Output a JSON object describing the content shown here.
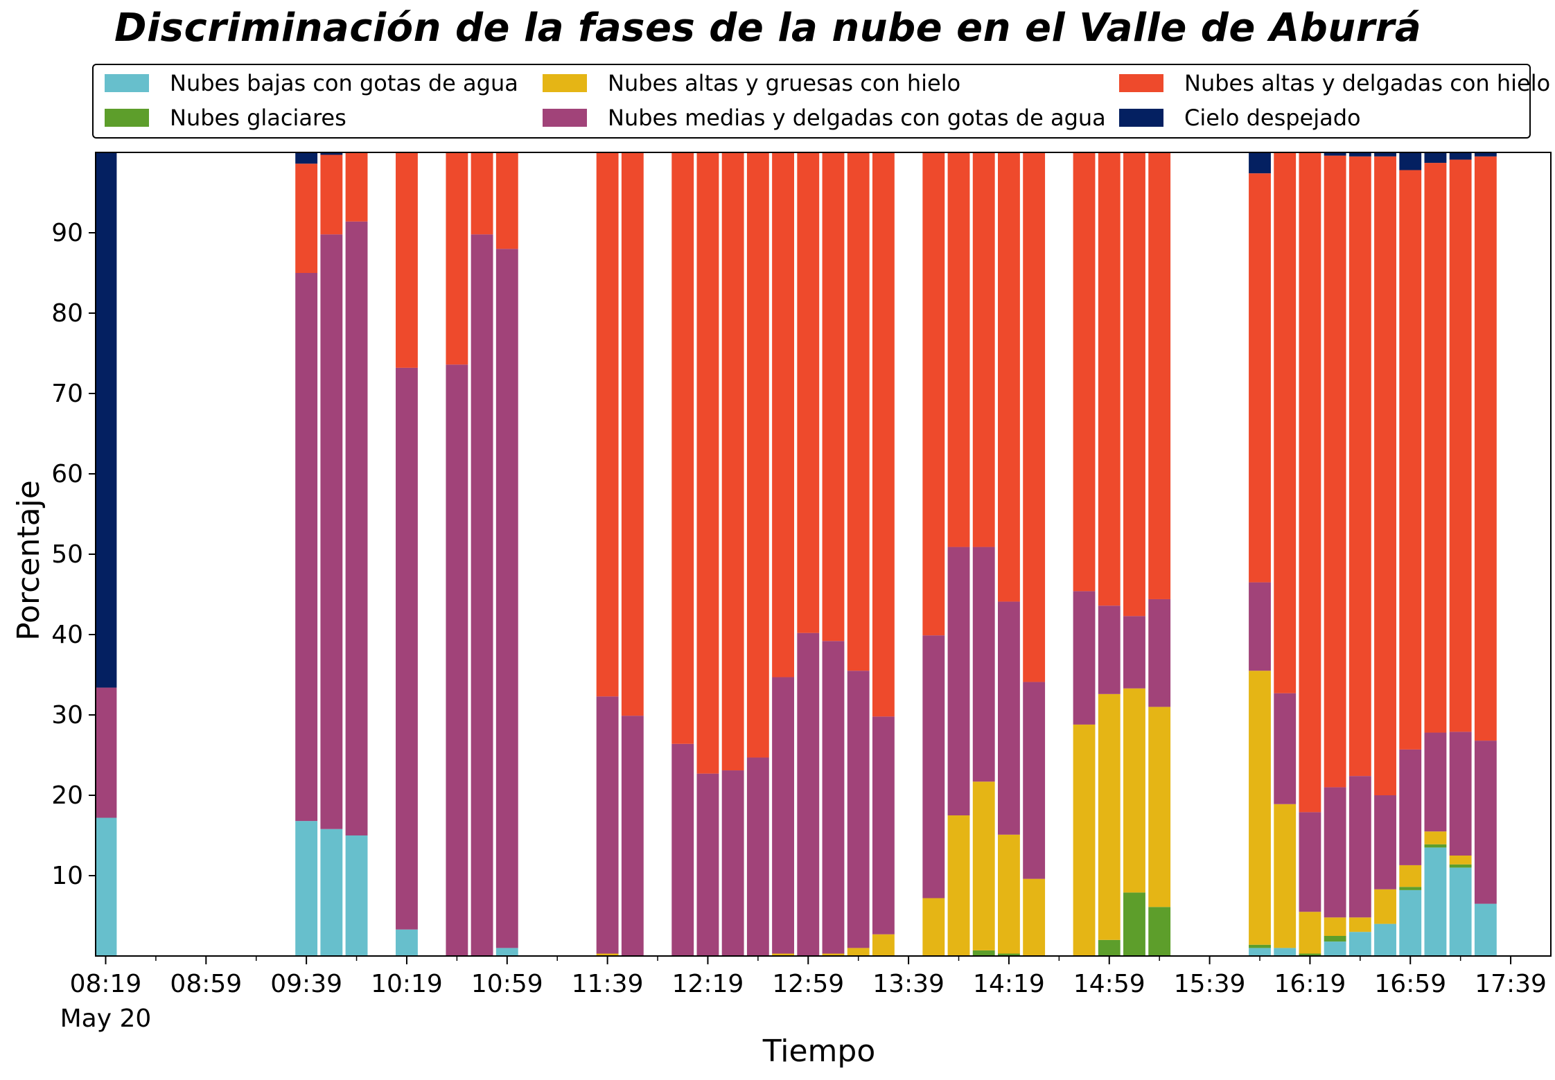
{
  "chart_data": {
    "type": "bar",
    "stacked": true,
    "title": "Discriminación de la fases de la nube en el Valle de Aburrá",
    "xlabel": "Tiempo",
    "ylabel": "Porcentaje",
    "ylim": [
      0,
      100
    ],
    "y_ticks": [
      10,
      20,
      30,
      40,
      50,
      60,
      70,
      80,
      90
    ],
    "x_range": [
      "08:15",
      "17:55"
    ],
    "x_tick_labels": [
      "08:19",
      "08:59",
      "09:39",
      "10:19",
      "10:59",
      "11:39",
      "12:19",
      "12:59",
      "13:39",
      "14:19",
      "14:59",
      "15:39",
      "16:19",
      "16:59",
      "17:39"
    ],
    "x_date_label": "May 20",
    "grid": false,
    "legend_position": "top",
    "series": [
      {
        "name": "Nubes bajas con gotas de agua",
        "color": "#67bfcc"
      },
      {
        "name": "Nubes glaciares",
        "color": "#5d9e2b"
      },
      {
        "name": "Nubes altas y gruesas con hielo",
        "color": "#e5b515"
      },
      {
        "name": "Nubes medias y delgadas con gotas de agua",
        "color": "#a14379"
      },
      {
        "name": "Nubes altas y delgadas con hielo",
        "color": "#ee4a2c"
      },
      {
        "name": "Cielo despejado",
        "color": "#042061"
      }
    ],
    "bars": [
      {
        "time": "08:19",
        "values": [
          17.2,
          0,
          0,
          16.2,
          0,
          66.6
        ]
      },
      {
        "time": "09:39",
        "values": [
          16.8,
          0,
          0,
          68.2,
          13.6,
          1.4
        ]
      },
      {
        "time": "09:49",
        "values": [
          15.8,
          0,
          0,
          74.0,
          9.9,
          0.3
        ]
      },
      {
        "time": "09:59",
        "values": [
          15.0,
          0,
          0,
          76.4,
          8.6,
          0
        ]
      },
      {
        "time": "10:19",
        "values": [
          3.3,
          0,
          0,
          69.9,
          26.8,
          0
        ]
      },
      {
        "time": "10:39",
        "values": [
          0,
          0,
          0,
          73.6,
          26.4,
          0
        ]
      },
      {
        "time": "10:49",
        "values": [
          0,
          0,
          0,
          89.8,
          10.2,
          0
        ]
      },
      {
        "time": "10:59",
        "values": [
          1.0,
          0,
          0,
          87.0,
          12.0,
          0
        ]
      },
      {
        "time": "11:39",
        "values": [
          0,
          0,
          0.3,
          32.0,
          67.7,
          0
        ]
      },
      {
        "time": "11:49",
        "values": [
          0,
          0,
          0,
          29.9,
          70.1,
          0
        ]
      },
      {
        "time": "12:09",
        "values": [
          0,
          0,
          0,
          26.4,
          73.6,
          0
        ]
      },
      {
        "time": "12:19",
        "values": [
          0,
          0,
          0,
          22.7,
          77.3,
          0
        ]
      },
      {
        "time": "12:29",
        "values": [
          0,
          0,
          0,
          23.1,
          76.9,
          0
        ]
      },
      {
        "time": "12:39",
        "values": [
          0,
          0,
          0,
          24.7,
          75.3,
          0
        ]
      },
      {
        "time": "12:49",
        "values": [
          0,
          0,
          0.3,
          34.4,
          65.3,
          0
        ]
      },
      {
        "time": "12:59",
        "values": [
          0,
          0,
          0,
          40.2,
          59.8,
          0
        ]
      },
      {
        "time": "13:09",
        "values": [
          0,
          0,
          0.3,
          38.9,
          60.8,
          0
        ]
      },
      {
        "time": "13:19",
        "values": [
          0,
          0,
          1.0,
          34.5,
          64.5,
          0
        ]
      },
      {
        "time": "13:29",
        "values": [
          0,
          0,
          2.7,
          27.1,
          70.2,
          0
        ]
      },
      {
        "time": "13:49",
        "values": [
          0,
          0,
          7.2,
          32.7,
          60.1,
          0
        ]
      },
      {
        "time": "13:59",
        "values": [
          0,
          0,
          17.5,
          33.4,
          49.1,
          0
        ]
      },
      {
        "time": "14:09",
        "values": [
          0,
          0.7,
          21.0,
          29.2,
          49.1,
          0
        ]
      },
      {
        "time": "14:19",
        "values": [
          0,
          0.3,
          14.8,
          29.0,
          55.9,
          0
        ]
      },
      {
        "time": "14:29",
        "values": [
          0,
          0,
          9.6,
          24.5,
          65.9,
          0
        ]
      },
      {
        "time": "14:49",
        "values": [
          0,
          0,
          28.8,
          16.6,
          54.6,
          0
        ]
      },
      {
        "time": "14:59",
        "values": [
          0,
          2.0,
          30.6,
          11.0,
          56.4,
          0
        ]
      },
      {
        "time": "15:09",
        "values": [
          0,
          7.9,
          25.4,
          9.0,
          57.7,
          0
        ]
      },
      {
        "time": "15:19",
        "values": [
          0,
          6.1,
          24.9,
          13.4,
          55.6,
          0
        ]
      },
      {
        "time": "15:59",
        "values": [
          1.0,
          0.4,
          34.1,
          11.0,
          50.9,
          2.6
        ]
      },
      {
        "time": "16:09",
        "values": [
          1.0,
          0,
          17.9,
          13.8,
          67.3,
          0
        ]
      },
      {
        "time": "16:19",
        "values": [
          0,
          0.3,
          5.2,
          12.4,
          82.1,
          0
        ]
      },
      {
        "time": "16:29",
        "values": [
          1.8,
          0.7,
          2.3,
          16.2,
          78.6,
          0.4
        ]
      },
      {
        "time": "16:39",
        "values": [
          3.0,
          0,
          1.8,
          17.6,
          77.1,
          0.5
        ]
      },
      {
        "time": "16:49",
        "values": [
          4.0,
          0,
          4.3,
          11.7,
          79.5,
          0.5
        ]
      },
      {
        "time": "16:59",
        "values": [
          8.2,
          0.4,
          2.7,
          14.4,
          72.1,
          2.2
        ]
      },
      {
        "time": "17:09",
        "values": [
          13.5,
          0.4,
          1.6,
          12.3,
          70.9,
          1.3
        ]
      },
      {
        "time": "17:19",
        "values": [
          11.0,
          0.4,
          1.1,
          15.4,
          71.2,
          0.9
        ]
      },
      {
        "time": "17:29",
        "values": [
          6.5,
          0,
          0,
          20.3,
          72.7,
          0.5
        ]
      }
    ]
  }
}
